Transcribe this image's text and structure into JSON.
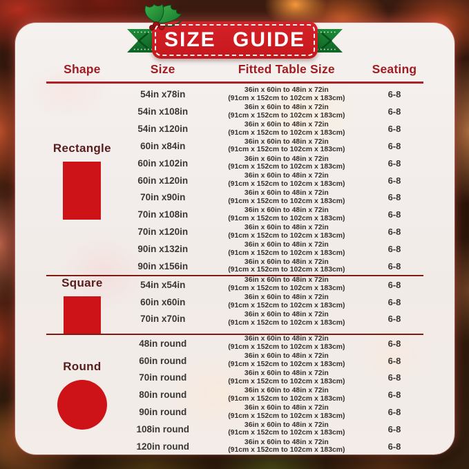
{
  "banner": {
    "title": "SIZE GUIDE",
    "decorations": [
      "green-ribbon",
      "holly-with-berries",
      "white-dashed-border"
    ]
  },
  "table": {
    "headers": {
      "shape": "Shape",
      "size": "Size",
      "fitted": "Fitted Table Size",
      "seating": "Seating"
    },
    "sections": [
      {
        "shape": "Rectangle",
        "icon": "rectangle",
        "rows": [
          {
            "size": "54in x78in",
            "fitted_line1": "36in x 60in to 48in x 72in",
            "fitted_line2": "(91cm x 152cm to 102cm x 183cm)",
            "seating": "6-8"
          },
          {
            "size": "54in x108in",
            "fitted_line1": "36in x 60in to 48in x 72in",
            "fitted_line2": "(91cm x 152cm to 102cm x 183cm)",
            "seating": "6-8"
          },
          {
            "size": "54in x120in",
            "fitted_line1": "36in x 60in to 48in x 72in",
            "fitted_line2": "(91cm x 152cm to 102cm x 183cm)",
            "seating": "6-8"
          },
          {
            "size": "60in x84in",
            "fitted_line1": "36in x 60in to 48in x 72in",
            "fitted_line2": "(91cm x 152cm to 102cm x 183cm)",
            "seating": "6-8"
          },
          {
            "size": "60in x102in",
            "fitted_line1": "36in x 60in to 48in x 72in",
            "fitted_line2": "(91cm x 152cm to 102cm x 183cm)",
            "seating": "6-8"
          },
          {
            "size": "60in x120in",
            "fitted_line1": "36in x 60in to 48in x 72in",
            "fitted_line2": "(91cm x 152cm to 102cm x 183cm)",
            "seating": "6-8"
          },
          {
            "size": "70in x90in",
            "fitted_line1": "36in x 60in to 48in x 72in",
            "fitted_line2": "(91cm x 152cm to 102cm x 183cm)",
            "seating": "6-8"
          },
          {
            "size": "70in x108in",
            "fitted_line1": "36in x 60in to 48in x 72in",
            "fitted_line2": "(91cm x 152cm to 102cm x 183cm)",
            "seating": "6-8"
          },
          {
            "size": "70in x120in",
            "fitted_line1": "36in x 60in to 48in x 72in",
            "fitted_line2": "(91cm x 152cm to 102cm x 183cm)",
            "seating": "6-8"
          },
          {
            "size": "90in x132in",
            "fitted_line1": "36in x 60in to 48in x 72in",
            "fitted_line2": "(91cm x 152cm to 102cm x 183cm)",
            "seating": "6-8"
          },
          {
            "size": "90in x156in",
            "fitted_line1": "36in x 60in to 48in x 72in",
            "fitted_line2": "(91cm x 152cm to 102cm x 183cm)",
            "seating": "6-8"
          }
        ]
      },
      {
        "shape": "Square",
        "icon": "square",
        "rows": [
          {
            "size": "54in x54in",
            "fitted_line1": "36in x 60in to 48in x 72in",
            "fitted_line2": "(91cm x 152cm to 102cm x 183cm)",
            "seating": "6-8"
          },
          {
            "size": "60in x60in",
            "fitted_line1": "36in x 60in to 48in x 72in",
            "fitted_line2": "(91cm x 152cm to 102cm x 183cm)",
            "seating": "6-8"
          },
          {
            "size": "70in x70in",
            "fitted_line1": "36in x 60in to 48in x 72in",
            "fitted_line2": "(91cm x 152cm to 102cm x 183cm)",
            "seating": "6-8"
          }
        ]
      },
      {
        "shape": "Round",
        "icon": "circle",
        "rows": [
          {
            "size": "48in round",
            "fitted_line1": "36in x 60in to 48in x 72in",
            "fitted_line2": "(91cm x 152cm to 102cm x 183cm)",
            "seating": "6-8"
          },
          {
            "size": "60in round",
            "fitted_line1": "36in x 60in to 48in x 72in",
            "fitted_line2": "(91cm x 152cm to 102cm x 183cm)",
            "seating": "6-8"
          },
          {
            "size": "70in round",
            "fitted_line1": "36in x 60in to 48in x 72in",
            "fitted_line2": "(91cm x 152cm to 102cm x 183cm)",
            "seating": "6-8"
          },
          {
            "size": "80in round",
            "fitted_line1": "36in x 60in to 48in x 72in",
            "fitted_line2": "(91cm x 152cm to 102cm x 183cm)",
            "seating": "6-8"
          },
          {
            "size": "90in round",
            "fitted_line1": "36in x 60in to 48in x 72in",
            "fitted_line2": "(91cm x 152cm to 102cm x 183cm)",
            "seating": "6-8"
          },
          {
            "size": "108in round",
            "fitted_line1": "36in x 60in to 48in x 72in",
            "fitted_line2": "(91cm x 152cm to 102cm x 183cm)",
            "seating": "6-8"
          },
          {
            "size": "120in round",
            "fitted_line1": "36in x 60in to 48in x 72in",
            "fitted_line2": "(91cm x 152cm to 102cm x 183cm)",
            "seating": "6-8"
          }
        ]
      }
    ]
  },
  "colors": {
    "banner-red": "#d52228",
    "header-red": "#9e1d22",
    "rule-red": "#b02127",
    "divider-red": "#7e1c12",
    "maroon": "#571d1d",
    "shape-red": "#cd1317",
    "ribbon-green": "#15792e"
  }
}
